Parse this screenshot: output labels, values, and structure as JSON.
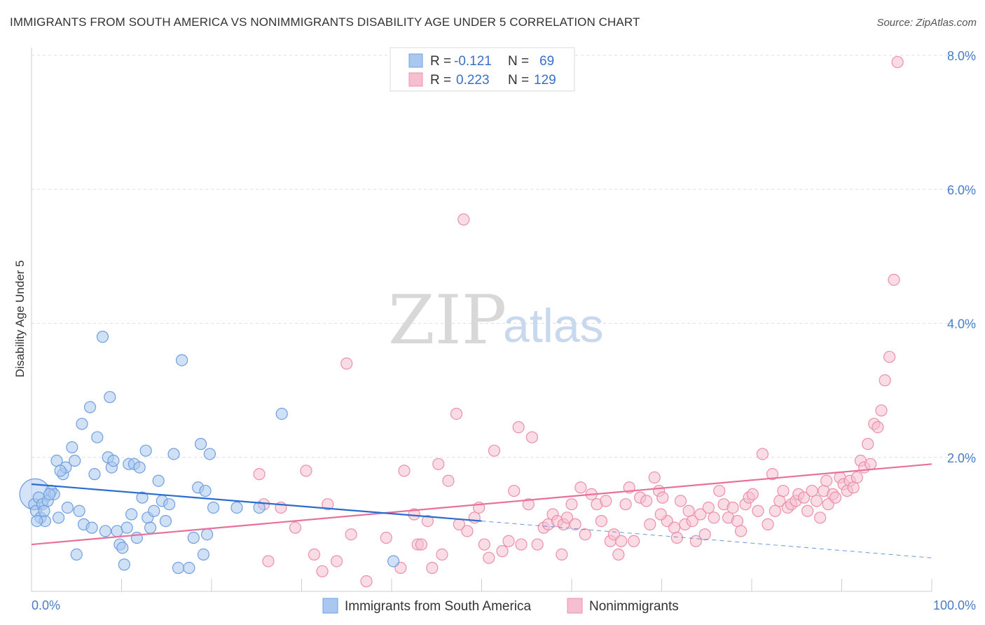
{
  "title": "IMMIGRANTS FROM SOUTH AMERICA VS NONIMMIGRANTS DISABILITY AGE UNDER 5 CORRELATION CHART",
  "source": "Source: ZipAtlas.com",
  "watermark": {
    "zip": "ZIP",
    "atlas": "atlas"
  },
  "legend": {
    "rows": [
      {
        "r_label": "R =",
        "r_value": "-0.121",
        "n_label": "N =",
        "n_value": "69"
      },
      {
        "r_label": "R =",
        "r_value": "0.223",
        "n_label": "N =",
        "n_value": "129"
      }
    ]
  },
  "colors": {
    "blue_fill": "#a9c8ef",
    "blue_stroke": "#6f9fe0",
    "blue_line": "#2a6ccf",
    "pink_fill": "#f6bfd0",
    "pink_stroke": "#ec8fab",
    "pink_line": "#e8709a",
    "tick_text": "#4a7cc4",
    "grid": "#dddddd"
  },
  "chart_data": {
    "type": "scatter",
    "title": "IMMIGRANTS FROM SOUTH AMERICA VS NONIMMIGRANTS DISABILITY AGE UNDER 5 CORRELATION CHART",
    "xlabel": "",
    "ylabel": "Disability Age Under 5",
    "xlim": [
      0,
      100
    ],
    "ylim": [
      0,
      8.0
    ],
    "x_tick_labels": [
      "0.0%",
      "100.0%"
    ],
    "y_ticks": [
      2.0,
      4.0,
      6.0,
      8.0
    ],
    "y_tick_labels": [
      "2.0%",
      "4.0%",
      "6.0%",
      "8.0%"
    ],
    "grid": "horizontal dashed",
    "legend_position": "top-center",
    "series": [
      {
        "name": "Immigrants from South America",
        "r": -0.121,
        "n": 69,
        "trend": {
          "x0": 0,
          "y0": 1.6,
          "x1": 50,
          "y1": 1.05,
          "dashed_to_x": 100,
          "dashed_to_y": 0.5
        },
        "points": [
          [
            0.3,
            1.3
          ],
          [
            0.5,
            1.2
          ],
          [
            0.8,
            1.4
          ],
          [
            1.0,
            1.1
          ],
          [
            1.2,
            1.3
          ],
          [
            1.5,
            1.05
          ],
          [
            1.8,
            1.35
          ],
          [
            2.2,
            1.5
          ],
          [
            2.5,
            1.45
          ],
          [
            2.8,
            1.95
          ],
          [
            3.0,
            1.1
          ],
          [
            3.5,
            1.75
          ],
          [
            3.8,
            1.85
          ],
          [
            4.5,
            2.15
          ],
          [
            4.8,
            1.95
          ],
          [
            5.0,
            0.55
          ],
          [
            5.3,
            1.2
          ],
          [
            5.6,
            2.5
          ],
          [
            5.8,
            1.0
          ],
          [
            6.5,
            2.75
          ],
          [
            6.7,
            0.95
          ],
          [
            7.0,
            1.75
          ],
          [
            7.3,
            2.3
          ],
          [
            7.9,
            3.8
          ],
          [
            8.2,
            0.9
          ],
          [
            8.5,
            2.0
          ],
          [
            8.7,
            2.9
          ],
          [
            8.9,
            1.85
          ],
          [
            9.1,
            1.95
          ],
          [
            9.5,
            0.9
          ],
          [
            9.8,
            0.7
          ],
          [
            10.1,
            0.65
          ],
          [
            10.3,
            0.4
          ],
          [
            10.6,
            0.95
          ],
          [
            10.8,
            1.9
          ],
          [
            11.1,
            1.15
          ],
          [
            11.4,
            1.9
          ],
          [
            11.7,
            0.8
          ],
          [
            12.0,
            1.85
          ],
          [
            12.3,
            1.4
          ],
          [
            12.7,
            2.1
          ],
          [
            12.9,
            1.1
          ],
          [
            13.2,
            0.95
          ],
          [
            13.6,
            1.2
          ],
          [
            14.1,
            1.65
          ],
          [
            14.5,
            1.35
          ],
          [
            14.9,
            1.05
          ],
          [
            15.3,
            1.3
          ],
          [
            15.8,
            2.05
          ],
          [
            16.3,
            0.35
          ],
          [
            16.7,
            3.45
          ],
          [
            17.5,
            0.35
          ],
          [
            18.0,
            0.8
          ],
          [
            18.5,
            1.55
          ],
          [
            18.8,
            2.2
          ],
          [
            19.1,
            0.55
          ],
          [
            19.3,
            1.5
          ],
          [
            19.5,
            0.85
          ],
          [
            19.8,
            2.05
          ],
          [
            20.2,
            1.25
          ],
          [
            22.8,
            1.25
          ],
          [
            25.3,
            1.25
          ],
          [
            27.8,
            2.65
          ],
          [
            40.2,
            0.45
          ],
          [
            0.6,
            1.05
          ],
          [
            1.4,
            1.2
          ],
          [
            2.0,
            1.45
          ],
          [
            3.2,
            1.8
          ],
          [
            4.0,
            1.25
          ]
        ],
        "sizes_note": "first point larger",
        "big_point": [
          0.4,
          1.45
        ]
      },
      {
        "name": "Nonimmigrants",
        "r": 0.223,
        "n": 129,
        "trend": {
          "x0": 0,
          "y0": 0.7,
          "x1": 100,
          "y1": 1.9
        },
        "points": [
          [
            25.3,
            1.75
          ],
          [
            25.8,
            1.3
          ],
          [
            26.3,
            0.45
          ],
          [
            27.7,
            1.25
          ],
          [
            29.3,
            0.95
          ],
          [
            30.5,
            1.8
          ],
          [
            31.4,
            0.55
          ],
          [
            32.3,
            0.3
          ],
          [
            32.9,
            1.3
          ],
          [
            33.9,
            0.45
          ],
          [
            35.0,
            3.4
          ],
          [
            35.5,
            0.85
          ],
          [
            37.2,
            0.15
          ],
          [
            39.4,
            0.8
          ],
          [
            41.0,
            0.35
          ],
          [
            41.4,
            1.8
          ],
          [
            42.5,
            1.15
          ],
          [
            42.9,
            0.7
          ],
          [
            43.3,
            0.7
          ],
          [
            44.0,
            1.05
          ],
          [
            44.5,
            0.35
          ],
          [
            45.2,
            1.9
          ],
          [
            45.6,
            0.55
          ],
          [
            46.3,
            1.65
          ],
          [
            47.2,
            2.65
          ],
          [
            47.5,
            1.0
          ],
          [
            48.0,
            5.55
          ],
          [
            48.4,
            0.9
          ],
          [
            49.2,
            1.1
          ],
          [
            49.7,
            1.25
          ],
          [
            50.3,
            0.7
          ],
          [
            50.8,
            0.5
          ],
          [
            51.4,
            2.1
          ],
          [
            52.3,
            0.6
          ],
          [
            53.0,
            0.75
          ],
          [
            53.6,
            1.5
          ],
          [
            54.1,
            2.45
          ],
          [
            54.4,
            0.7
          ],
          [
            55.2,
            1.3
          ],
          [
            55.6,
            2.3
          ],
          [
            56.2,
            0.7
          ],
          [
            56.9,
            0.95
          ],
          [
            57.4,
            1.0
          ],
          [
            57.9,
            1.15
          ],
          [
            58.4,
            1.05
          ],
          [
            58.9,
            0.55
          ],
          [
            59.1,
            1.0
          ],
          [
            59.5,
            1.1
          ],
          [
            60.0,
            1.3
          ],
          [
            60.4,
            1.0
          ],
          [
            61.0,
            1.55
          ],
          [
            61.5,
            0.85
          ],
          [
            62.2,
            1.45
          ],
          [
            62.8,
            1.3
          ],
          [
            63.3,
            1.05
          ],
          [
            63.8,
            1.35
          ],
          [
            64.3,
            0.75
          ],
          [
            64.7,
            0.85
          ],
          [
            65.2,
            0.55
          ],
          [
            65.5,
            0.75
          ],
          [
            66.0,
            1.3
          ],
          [
            66.4,
            1.55
          ],
          [
            66.9,
            0.75
          ],
          [
            67.6,
            1.4
          ],
          [
            68.3,
            1.35
          ],
          [
            68.7,
            1.0
          ],
          [
            69.2,
            1.7
          ],
          [
            69.7,
            1.5
          ],
          [
            70.1,
            1.4
          ],
          [
            70.6,
            1.05
          ],
          [
            71.4,
            0.95
          ],
          [
            71.7,
            0.8
          ],
          [
            72.1,
            1.35
          ],
          [
            72.6,
            1.0
          ],
          [
            73.0,
            1.2
          ],
          [
            73.4,
            1.05
          ],
          [
            73.8,
            0.75
          ],
          [
            74.3,
            1.15
          ],
          [
            74.8,
            0.85
          ],
          [
            75.2,
            1.25
          ],
          [
            75.8,
            1.1
          ],
          [
            76.4,
            1.5
          ],
          [
            76.9,
            1.3
          ],
          [
            77.4,
            1.1
          ],
          [
            77.9,
            1.25
          ],
          [
            78.4,
            1.05
          ],
          [
            78.8,
            0.9
          ],
          [
            79.3,
            1.3
          ],
          [
            79.7,
            1.4
          ],
          [
            80.1,
            1.45
          ],
          [
            80.7,
            1.2
          ],
          [
            81.2,
            2.05
          ],
          [
            81.8,
            1.0
          ],
          [
            82.3,
            1.75
          ],
          [
            82.6,
            1.2
          ],
          [
            83.1,
            1.35
          ],
          [
            83.5,
            1.5
          ],
          [
            84.0,
            1.25
          ],
          [
            84.4,
            1.3
          ],
          [
            84.9,
            1.35
          ],
          [
            85.2,
            1.45
          ],
          [
            85.8,
            1.4
          ],
          [
            86.2,
            1.2
          ],
          [
            86.7,
            1.5
          ],
          [
            87.2,
            1.35
          ],
          [
            87.6,
            1.1
          ],
          [
            88.0,
            1.5
          ],
          [
            88.5,
            1.3
          ],
          [
            89.0,
            1.45
          ],
          [
            89.3,
            1.4
          ],
          [
            89.8,
            1.7
          ],
          [
            90.2,
            1.6
          ],
          [
            90.6,
            1.5
          ],
          [
            90.9,
            1.65
          ],
          [
            91.3,
            1.55
          ],
          [
            91.7,
            1.7
          ],
          [
            92.1,
            1.95
          ],
          [
            92.5,
            1.85
          ],
          [
            92.9,
            2.2
          ],
          [
            93.2,
            1.9
          ],
          [
            93.6,
            2.5
          ],
          [
            94.0,
            2.45
          ],
          [
            94.4,
            2.7
          ],
          [
            94.8,
            3.15
          ],
          [
            95.3,
            3.5
          ],
          [
            95.8,
            4.65
          ],
          [
            96.2,
            7.9
          ],
          [
            88.3,
            1.65
          ],
          [
            69.9,
            1.15
          ]
        ]
      }
    ],
    "series_legend": [
      "Immigrants from South America",
      "Nonimmigrants"
    ]
  }
}
